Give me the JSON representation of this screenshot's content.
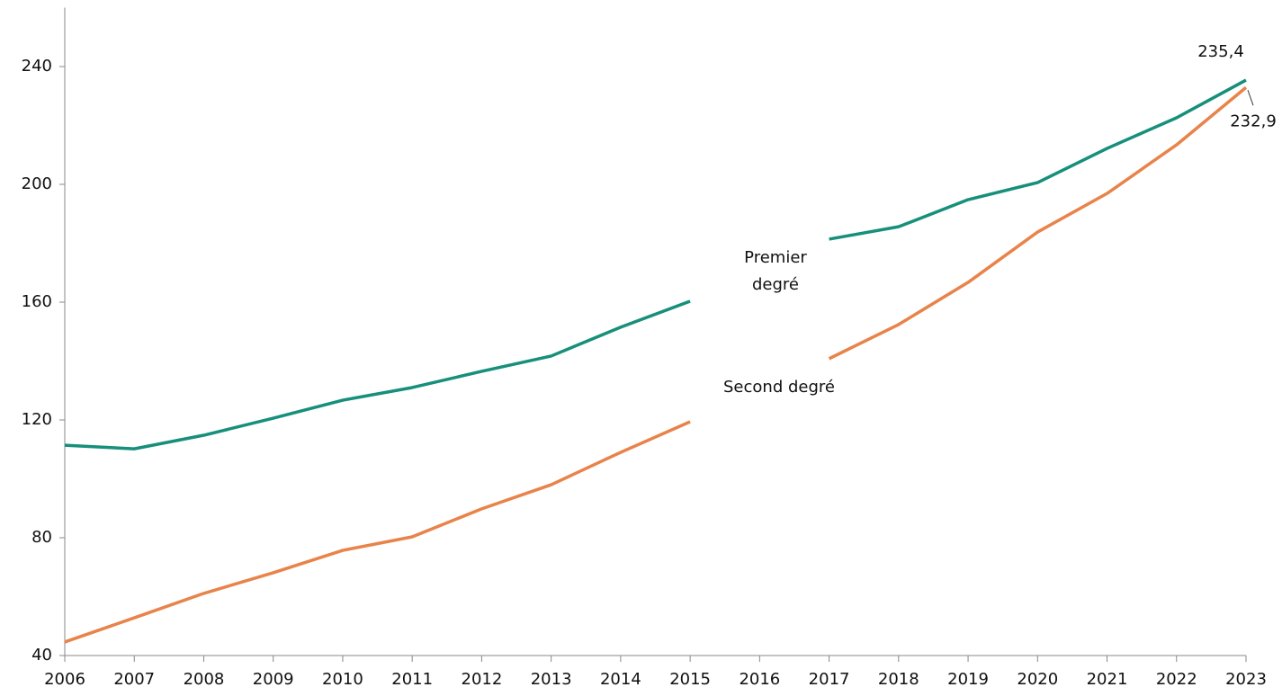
{
  "chart_data": {
    "type": "line",
    "x": [
      2006,
      2007,
      2008,
      2009,
      2010,
      2011,
      2012,
      2013,
      2014,
      2015,
      2016,
      2017,
      2018,
      2019,
      2020,
      2021,
      2022,
      2023
    ],
    "xlim": [
      2006,
      2023
    ],
    "xticks": [
      2006,
      2007,
      2008,
      2009,
      2010,
      2011,
      2012,
      2013,
      2014,
      2015,
      2016,
      2017,
      2018,
      2019,
      2020,
      2021,
      2022,
      2023
    ],
    "ylim": [
      40,
      260
    ],
    "yticks": [
      40,
      80,
      120,
      160,
      200,
      240
    ],
    "grid": false,
    "series": [
      {
        "name": "Premier degré",
        "color": "#168f7b",
        "values": [
          111.4,
          110.2,
          114.8,
          120.6,
          126.7,
          131.0,
          136.5,
          141.7,
          151.5,
          160.3,
          null,
          181.4,
          185.6,
          194.8,
          200.6,
          212.2,
          222.6,
          235.4
        ],
        "value_labels": [
          null,
          null,
          null,
          null,
          null,
          null,
          null,
          null,
          null,
          null,
          null,
          null,
          null,
          null,
          null,
          null,
          null,
          "235,4"
        ]
      },
      {
        "name": "Second degré",
        "color": "#e8834a",
        "values": [
          44.6,
          52.8,
          61.1,
          68.1,
          75.7,
          80.3,
          89.8,
          98.0,
          109.0,
          119.4,
          null,
          140.8,
          152.4,
          166.7,
          183.8,
          196.9,
          213.4,
          232.9
        ],
        "value_labels": [
          null,
          null,
          null,
          null,
          null,
          null,
          null,
          null,
          null,
          null,
          null,
          null,
          null,
          null,
          null,
          null,
          null,
          "232,9"
        ]
      }
    ]
  }
}
